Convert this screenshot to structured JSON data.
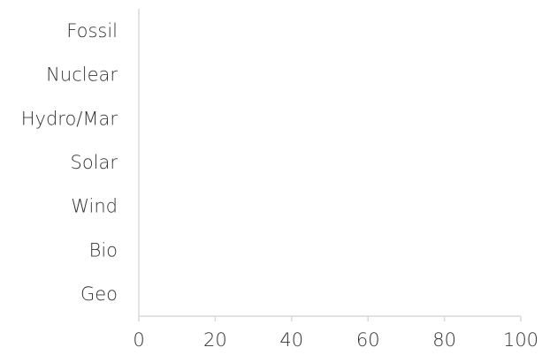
{
  "chart_data": {
    "type": "bar",
    "orientation": "horizontal",
    "categories": [
      "Fossil",
      "Nuclear",
      "Hydro/Mar",
      "Solar",
      "Wind",
      "Bio",
      "Geo"
    ],
    "values": [
      null,
      null,
      null,
      null,
      null,
      null,
      null
    ],
    "xlim": [
      0,
      100
    ],
    "xticks": [
      "0",
      "20",
      "40",
      "60",
      "80",
      "100"
    ],
    "title": "",
    "xlabel": "",
    "ylabel": "",
    "grid": false,
    "legend": "none",
    "colors": {
      "axis": "#d9d9d9",
      "text": "#333333"
    }
  }
}
